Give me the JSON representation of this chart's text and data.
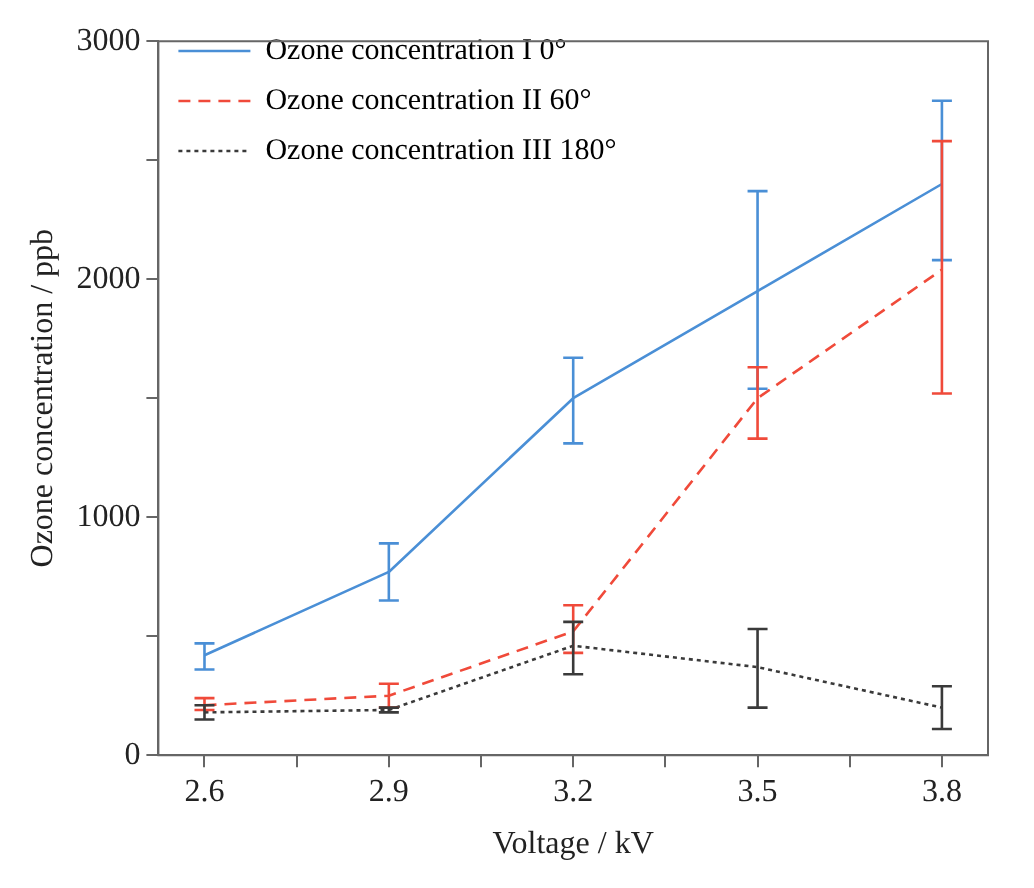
{
  "chart_data": {
    "type": "line",
    "xlabel": "Voltage / kV",
    "ylabel": "Ozone concentration / ppb",
    "x": [
      2.6,
      2.9,
      3.2,
      3.5,
      3.8
    ],
    "xlim": [
      2.525,
      3.875
    ],
    "xticks": [
      2.6,
      {
        "value": 2.75,
        "label": null
      },
      2.9,
      {
        "value": 3.05,
        "label": null
      },
      3.2,
      {
        "value": 3.35,
        "label": null
      },
      3.5,
      {
        "value": 3.65,
        "label": null
      },
      3.8
    ],
    "ylim": [
      0,
      3000
    ],
    "yticks": [
      0,
      {
        "value": 500,
        "label": null
      },
      1000,
      {
        "value": 1500,
        "label": null
      },
      2000,
      {
        "value": 2500,
        "label": null
      },
      3000
    ],
    "series": [
      {
        "name": "Ozone concentration I 0°",
        "color": "#4a8fd6",
        "line_style": "solid",
        "values": [
          420,
          770,
          1500,
          1950,
          2400
        ],
        "errors": [
          [
            360,
            470
          ],
          [
            650,
            890
          ],
          [
            1310,
            1670
          ],
          [
            1540,
            2370
          ],
          [
            2080,
            2750
          ]
        ]
      },
      {
        "name": "Ozone concentration II 60°",
        "color": "#f04a3a",
        "line_style": "dashed",
        "values": [
          210,
          250,
          520,
          1500,
          2040
        ],
        "errors": [
          [
            190,
            240
          ],
          [
            200,
            300
          ],
          [
            430,
            630
          ],
          [
            1330,
            1630
          ],
          [
            1520,
            2580
          ]
        ]
      },
      {
        "name": "Ozone concentration III 180°",
        "color": "#3a3a3a",
        "line_style": "dotted",
        "values": [
          180,
          190,
          460,
          370,
          200
        ],
        "errors": [
          [
            150,
            210
          ],
          [
            180,
            200
          ],
          [
            340,
            560
          ],
          [
            200,
            530
          ],
          [
            110,
            290
          ]
        ]
      }
    ],
    "legend": "top left",
    "marker": "none",
    "grid": false
  }
}
